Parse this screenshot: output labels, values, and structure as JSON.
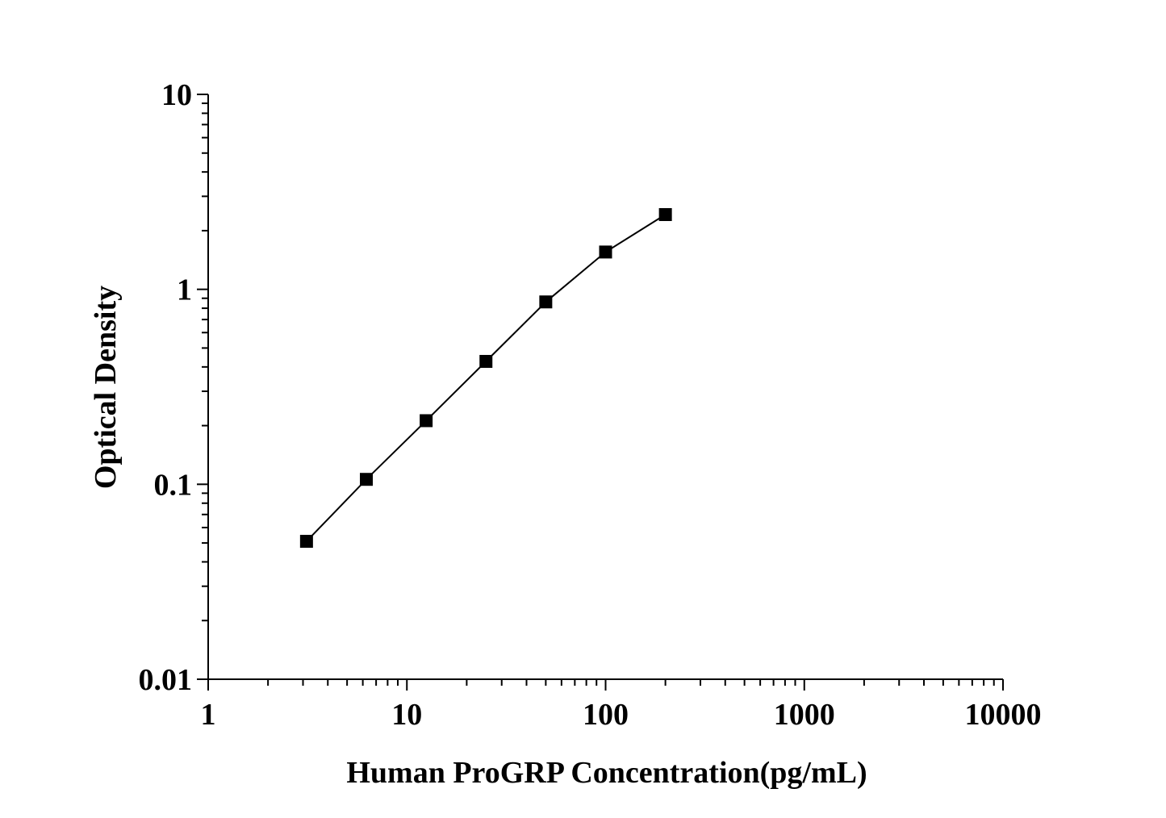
{
  "chart_data": {
    "type": "line",
    "xlabel": "Human ProGRP Concentration(pg/mL)",
    "ylabel": "Optical Density",
    "x_scale": "log",
    "y_scale": "log",
    "xlim": [
      1,
      10000
    ],
    "ylim": [
      0.01,
      10
    ],
    "x_ticks": [
      "1",
      "10",
      "100",
      "1000",
      "10000"
    ],
    "y_ticks": [
      "0.01",
      "0.1",
      "1",
      "10"
    ],
    "grid": false,
    "legend": "none",
    "marker": "square",
    "line_color": "#000000",
    "marker_color": "#000000",
    "series": [
      {
        "x": [
          3.125,
          6.25,
          12.5,
          25,
          50,
          100,
          200
        ],
        "y": [
          0.051,
          0.106,
          0.212,
          0.427,
          0.862,
          1.554,
          2.418
        ]
      }
    ]
  }
}
